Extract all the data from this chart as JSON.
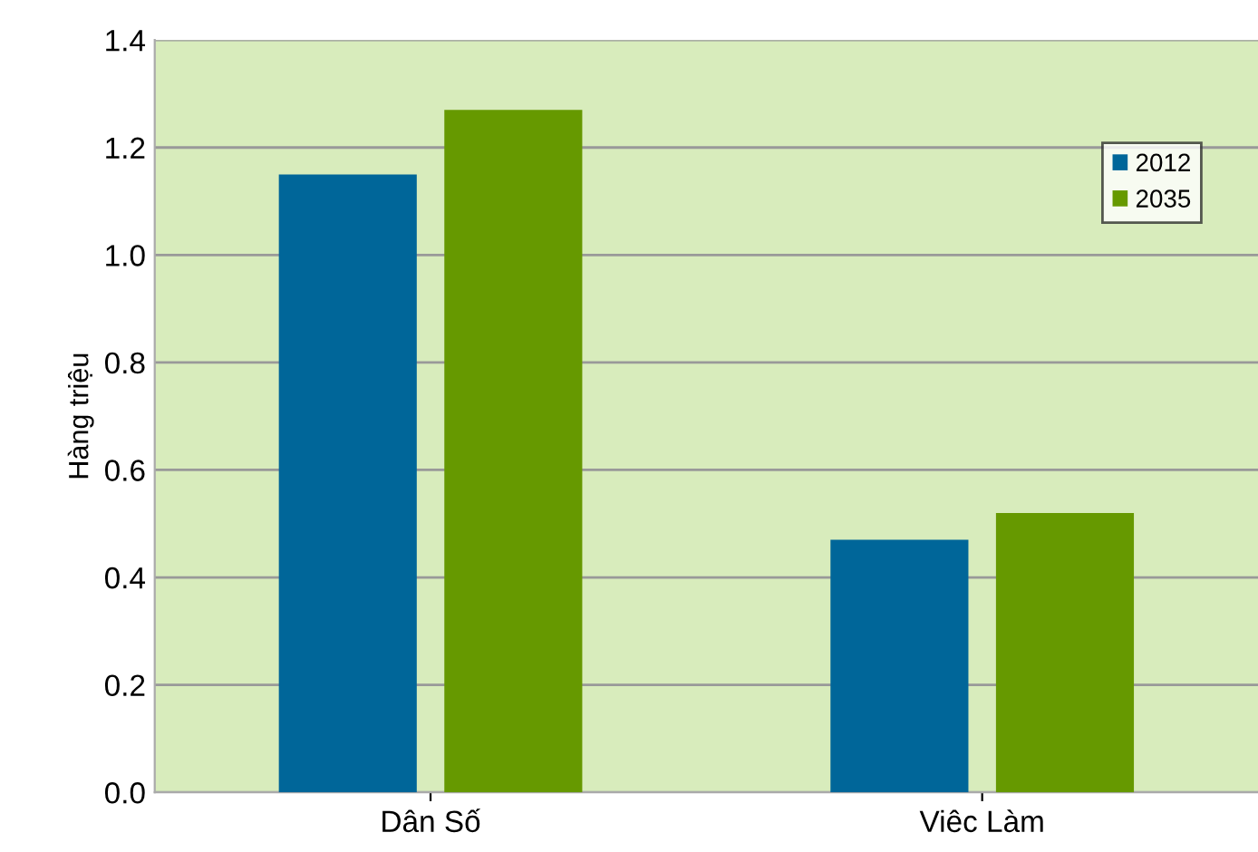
{
  "chart_data": {
    "type": "bar",
    "ylabel": "Hàng triệu",
    "categories": [
      "Dân Số",
      "Viêc Làm"
    ],
    "series": [
      {
        "name": "2012",
        "color": "#006699",
        "values": [
          1.15,
          0.47
        ]
      },
      {
        "name": "2035",
        "color": "#669900",
        "values": [
          1.27,
          0.52
        ]
      }
    ],
    "ylim": [
      0,
      1.4
    ],
    "yticks": [
      {
        "value": 0,
        "label": "0.0"
      },
      0.2,
      0.4,
      0.6,
      0.8,
      {
        "value": 1,
        "label": "1.0"
      },
      1.2,
      1.4
    ],
    "grid": "y",
    "legend": "top right"
  }
}
